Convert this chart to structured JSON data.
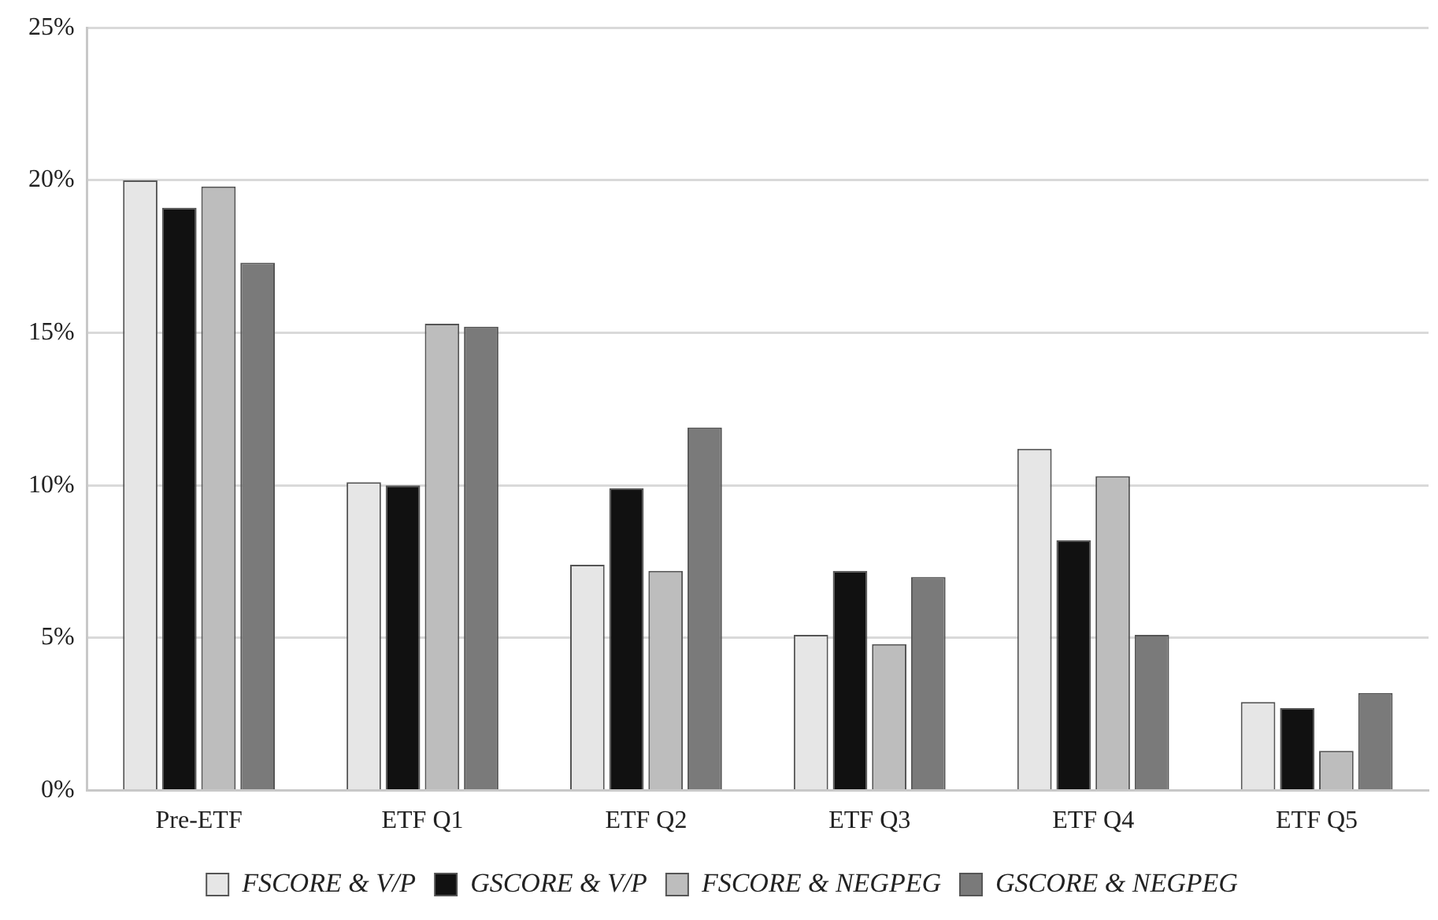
{
  "chart_data": {
    "type": "bar",
    "categories": [
      "Pre-ETF",
      "ETF Q1",
      "ETF Q2",
      "ETF Q3",
      "ETF Q4",
      "ETF Q5"
    ],
    "series": [
      {
        "name": "FSCORE & V/P",
        "color": "#e6e6e6",
        "values": [
          20.0,
          10.1,
          7.4,
          5.1,
          11.2,
          2.9
        ]
      },
      {
        "name": "GSCORE & V/P",
        "color": "#111111",
        "values": [
          19.1,
          10.0,
          9.9,
          7.2,
          8.2,
          2.7
        ]
      },
      {
        "name": "FSCORE & NEGPEG",
        "color": "#bdbdbd",
        "values": [
          19.8,
          15.3,
          7.2,
          4.8,
          10.3,
          1.3
        ]
      },
      {
        "name": "GSCORE & NEGPEG",
        "color": "#7a7a7a",
        "values": [
          17.3,
          15.2,
          11.9,
          7.0,
          5.1,
          3.2
        ]
      }
    ],
    "ylim": [
      0,
      25
    ],
    "yticks": [
      {
        "value": 0,
        "label": "0%"
      },
      {
        "value": 5,
        "label": "5%"
      },
      {
        "value": 10,
        "label": "10%"
      },
      {
        "value": 15,
        "label": "15%"
      },
      {
        "value": 20,
        "label": "20%"
      },
      {
        "value": 25,
        "label": "25%"
      }
    ],
    "grid": "y",
    "legend": "bottom"
  }
}
